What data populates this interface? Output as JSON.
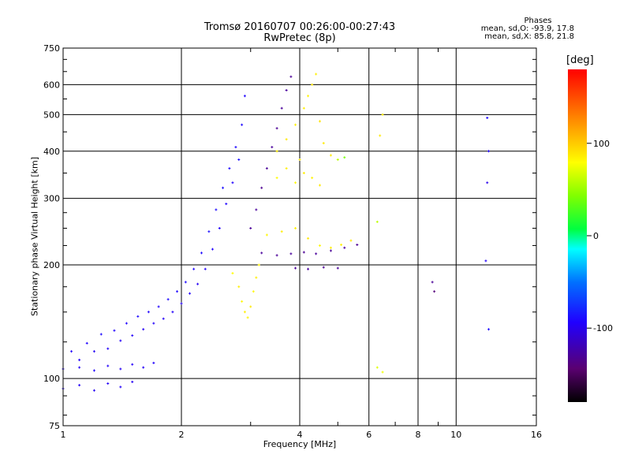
{
  "header": {
    "title": "Tromsø 20160707 00:26:00-00:27:43",
    "subtitle": "RwPretec (8p)"
  },
  "phases": {
    "heading": "Phases",
    "line_o": "mean, sd,O: -93.9, 17.8",
    "line_x": "mean, sd,X:  85.8, 21.8"
  },
  "colorbar": {
    "unit": "[deg]",
    "ticks": [
      {
        "value": 100,
        "label": "100"
      },
      {
        "value": 0,
        "label": "0"
      },
      {
        "value": -100,
        "label": "-100"
      }
    ],
    "range": [
      -180,
      180
    ]
  },
  "chart_data": {
    "type": "scatter",
    "xlabel": "Frequency [MHz]",
    "ylabel": "Stationary phase Virtual Height [km]",
    "xscale": "log",
    "yscale": "log",
    "xlim": [
      1,
      16
    ],
    "ylim": [
      75,
      750
    ],
    "grid": true,
    "xticks": [
      {
        "value": 1,
        "label": "1"
      },
      {
        "value": 2,
        "label": "2"
      },
      {
        "value": 4,
        "label": "4"
      },
      {
        "value": 6,
        "label": "6"
      },
      {
        "value": 8,
        "label": "8"
      },
      {
        "value": 10,
        "label": "10"
      },
      {
        "value": 16,
        "label": "16"
      }
    ],
    "yticks": [
      {
        "value": 75,
        "label": "75"
      },
      {
        "value": 100,
        "label": "100"
      },
      {
        "value": 200,
        "label": "200"
      },
      {
        "value": 300,
        "label": "300"
      },
      {
        "value": 400,
        "label": "400"
      },
      {
        "value": 500,
        "label": "500"
      },
      {
        "value": 600,
        "label": "600"
      },
      {
        "value": 750,
        "label": "750"
      }
    ],
    "series": [
      {
        "points": [
          [
            1.05,
            118,
            -95
          ],
          [
            1.1,
            112,
            -95
          ],
          [
            1.15,
            124,
            -92
          ],
          [
            1.2,
            118,
            -98
          ],
          [
            1.25,
            131,
            -90
          ],
          [
            1.3,
            120,
            -95
          ],
          [
            1.35,
            134,
            -93
          ],
          [
            1.4,
            126,
            -96
          ],
          [
            1.45,
            140,
            -92
          ],
          [
            1.5,
            130,
            -95
          ],
          [
            1.55,
            146,
            -90
          ],
          [
            1.6,
            135,
            -97
          ],
          [
            1.65,
            150,
            -92
          ],
          [
            1.7,
            140,
            -95
          ],
          [
            1.75,
            155,
            -93
          ],
          [
            1.8,
            144,
            -96
          ],
          [
            1.85,
            162,
            -90
          ],
          [
            1.9,
            150,
            -95
          ],
          [
            1.95,
            170,
            -92
          ],
          [
            2.0,
            158,
            -96
          ],
          [
            2.05,
            180,
            -90
          ],
          [
            2.1,
            168,
            -95
          ],
          [
            2.15,
            195,
            -92
          ],
          [
            2.2,
            178,
            -97
          ],
          [
            2.25,
            215,
            -90
          ],
          [
            2.3,
            195,
            -95
          ],
          [
            2.35,
            245,
            -88
          ],
          [
            2.4,
            220,
            -93
          ],
          [
            2.45,
            280,
            -90
          ],
          [
            2.5,
            250,
            -95
          ],
          [
            2.55,
            320,
            -88
          ],
          [
            2.6,
            290,
            -92
          ],
          [
            2.65,
            360,
            -90
          ],
          [
            2.7,
            330,
            -94
          ],
          [
            2.75,
            410,
            -90
          ],
          [
            2.8,
            380,
            -88
          ],
          [
            2.85,
            470,
            -90
          ],
          [
            2.9,
            560,
            -92
          ]
        ]
      },
      {
        "points": [
          [
            1.0,
            106,
            -95
          ],
          [
            1.1,
            107,
            -96
          ],
          [
            1.2,
            105,
            -94
          ],
          [
            1.3,
            108,
            -95
          ],
          [
            1.4,
            106,
            -97
          ],
          [
            1.5,
            109,
            -95
          ],
          [
            1.6,
            107,
            -96
          ],
          [
            1.7,
            110,
            -94
          ]
        ]
      },
      {
        "points": [
          [
            1.0,
            94,
            -97
          ],
          [
            1.1,
            96,
            -96
          ],
          [
            1.2,
            93,
            -98
          ],
          [
            1.3,
            97,
            -96
          ],
          [
            1.4,
            95,
            -95
          ],
          [
            1.5,
            98,
            -97
          ]
        ]
      },
      {
        "points": [
          [
            3.0,
            250,
            -130
          ],
          [
            3.1,
            280,
            -128
          ],
          [
            3.2,
            320,
            -132
          ],
          [
            3.3,
            360,
            -130
          ],
          [
            3.4,
            410,
            -128
          ],
          [
            3.5,
            460,
            -131
          ],
          [
            3.6,
            520,
            -129
          ],
          [
            3.7,
            580,
            -128
          ],
          [
            3.8,
            630,
            -130
          ]
        ]
      },
      {
        "points": [
          [
            3.2,
            215,
            -128
          ],
          [
            3.5,
            212,
            -130
          ],
          [
            3.8,
            214,
            -128
          ],
          [
            4.1,
            216,
            -131
          ],
          [
            4.4,
            214,
            -129
          ],
          [
            4.8,
            218,
            -130
          ],
          [
            5.2,
            222,
            -128
          ],
          [
            5.6,
            226,
            -131
          ]
        ]
      },
      {
        "points": [
          [
            3.9,
            196,
            -130
          ],
          [
            4.2,
            195,
            -128
          ],
          [
            4.6,
            197,
            -131
          ],
          [
            5.0,
            196,
            -129
          ]
        ]
      },
      {
        "points": [
          [
            3.5,
            400,
            85
          ],
          [
            3.7,
            430,
            88
          ],
          [
            3.9,
            470,
            84
          ],
          [
            4.0,
            380,
            90
          ],
          [
            4.1,
            520,
            86
          ],
          [
            4.2,
            560,
            84
          ],
          [
            4.3,
            600,
            88
          ],
          [
            4.4,
            640,
            85
          ],
          [
            4.5,
            480,
            90
          ],
          [
            4.6,
            420,
            87
          ],
          [
            4.8,
            390,
            88
          ],
          [
            5.0,
            380,
            60
          ],
          [
            5.2,
            385,
            40
          ]
        ]
      },
      {
        "points": [
          [
            3.5,
            340,
            80
          ],
          [
            3.7,
            360,
            85
          ],
          [
            3.9,
            330,
            82
          ],
          [
            4.1,
            350,
            86
          ],
          [
            4.3,
            340,
            84
          ],
          [
            4.5,
            325,
            88
          ]
        ]
      },
      {
        "points": [
          [
            3.3,
            240,
            82
          ],
          [
            3.6,
            245,
            86
          ],
          [
            3.9,
            250,
            84
          ],
          [
            4.2,
            235,
            88
          ],
          [
            4.5,
            225,
            82
          ],
          [
            4.8,
            222,
            86
          ],
          [
            5.1,
            226,
            84
          ],
          [
            5.4,
            232,
            88
          ]
        ]
      },
      {
        "points": [
          [
            2.7,
            190,
            80
          ],
          [
            2.8,
            175,
            85
          ],
          [
            2.85,
            160,
            82
          ],
          [
            2.9,
            150,
            86
          ],
          [
            2.95,
            145,
            84
          ],
          [
            3.0,
            155,
            88
          ],
          [
            3.05,
            170,
            82
          ],
          [
            3.1,
            185,
            86
          ],
          [
            3.15,
            200,
            84
          ]
        ]
      },
      {
        "points": [
          [
            6.5,
            500,
            85
          ],
          [
            6.4,
            440,
            88
          ],
          [
            6.3,
            260,
            60
          ],
          [
            6.3,
            107,
            70
          ],
          [
            6.5,
            104,
            75
          ],
          [
            8.7,
            180,
            -130
          ],
          [
            8.8,
            170,
            -140
          ],
          [
            12.0,
            490,
            -90
          ],
          [
            12.1,
            400,
            -95
          ],
          [
            12.0,
            330,
            -100
          ],
          [
            11.9,
            205,
            -95
          ],
          [
            12.1,
            135,
            -90
          ]
        ]
      }
    ]
  }
}
